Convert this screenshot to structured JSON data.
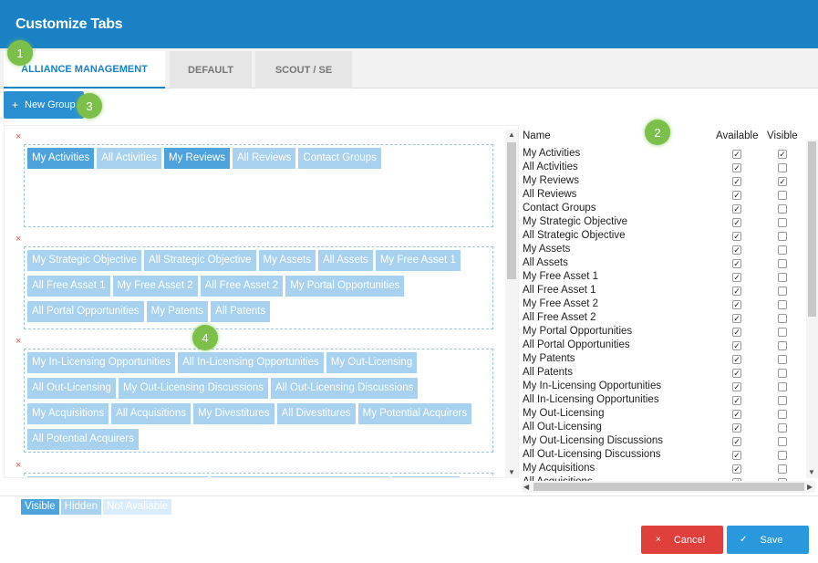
{
  "dialog": {
    "title": "Customize Tabs"
  },
  "tabs": [
    {
      "label": "ALLIANCE MANAGEMENT",
      "active": true
    },
    {
      "label": "DEFAULT",
      "active": false
    },
    {
      "label": "SCOUT / SE",
      "active": false
    }
  ],
  "badges": [
    "1",
    "2",
    "3",
    "4"
  ],
  "toolbar": {
    "new_group_label": "New Group",
    "new_group_icon": "+"
  },
  "groups": [
    {
      "remove_icon": "×",
      "chips": [
        {
          "label": "My Activities",
          "state": "visible"
        },
        {
          "label": "All Activities",
          "state": "hidden"
        },
        {
          "label": "My Reviews",
          "state": "visible"
        },
        {
          "label": "All Reviews",
          "state": "hidden"
        },
        {
          "label": "Contact Groups",
          "state": "hidden"
        }
      ]
    },
    {
      "remove_icon": "×",
      "chips": [
        {
          "label": "My Strategic Objective",
          "state": "hidden"
        },
        {
          "label": "All Strategic Objective",
          "state": "hidden"
        },
        {
          "label": "My Assets",
          "state": "hidden"
        },
        {
          "label": "All Assets",
          "state": "hidden"
        },
        {
          "label": "My Free Asset 1",
          "state": "hidden"
        },
        {
          "label": "All Free Asset 1",
          "state": "hidden"
        },
        {
          "label": "My Free Asset 2",
          "state": "hidden"
        },
        {
          "label": "All Free Asset 2",
          "state": "hidden"
        },
        {
          "label": "My Portal Opportunities",
          "state": "hidden"
        },
        {
          "label": "All Portal Opportunities",
          "state": "hidden"
        },
        {
          "label": "My Patents",
          "state": "hidden"
        },
        {
          "label": "All Patents",
          "state": "hidden"
        }
      ]
    },
    {
      "remove_icon": "×",
      "chips": [
        {
          "label": "My In-Licensing Opportunities",
          "state": "hidden"
        },
        {
          "label": "All In-Licensing Opportunities",
          "state": "hidden"
        },
        {
          "label": "My Out-Licensing",
          "state": "hidden"
        },
        {
          "label": "All Out-Licensing",
          "state": "hidden"
        },
        {
          "label": "My Out-Licensing Discussions",
          "state": "hidden"
        },
        {
          "label": "All Out-Licensing Discussions",
          "state": "hidden"
        },
        {
          "label": "My Acquisitions",
          "state": "hidden"
        },
        {
          "label": "All Acquisitions",
          "state": "hidden"
        },
        {
          "label": "My Divestitures",
          "state": "hidden"
        },
        {
          "label": "All Divestitures",
          "state": "hidden"
        },
        {
          "label": "My Potential Acquirers",
          "state": "hidden"
        },
        {
          "label": "All Potential Acquirers",
          "state": "hidden"
        }
      ]
    },
    {
      "remove_icon": "×",
      "chips": [
        {
          "label": "",
          "state": "hidden"
        },
        {
          "label": "",
          "state": "hidden"
        },
        {
          "label": "",
          "state": "hidden"
        }
      ]
    }
  ],
  "table": {
    "headers": {
      "name": "Name",
      "available": "Available",
      "visible": "Visible"
    },
    "rows": [
      {
        "name": "My Activities",
        "available": true,
        "visible": true
      },
      {
        "name": "All Activities",
        "available": true,
        "visible": false
      },
      {
        "name": "My Reviews",
        "available": true,
        "visible": true
      },
      {
        "name": "All Reviews",
        "available": true,
        "visible": false
      },
      {
        "name": "Contact Groups",
        "available": true,
        "visible": false
      },
      {
        "name": "My Strategic Objective",
        "available": true,
        "visible": false
      },
      {
        "name": "All Strategic Objective",
        "available": true,
        "visible": false
      },
      {
        "name": "My Assets",
        "available": true,
        "visible": false
      },
      {
        "name": "All Assets",
        "available": true,
        "visible": false
      },
      {
        "name": "My Free Asset 1",
        "available": true,
        "visible": false
      },
      {
        "name": "All Free Asset 1",
        "available": true,
        "visible": false
      },
      {
        "name": "My Free Asset 2",
        "available": true,
        "visible": false
      },
      {
        "name": "All Free Asset 2",
        "available": true,
        "visible": false
      },
      {
        "name": "My Portal Opportunities",
        "available": true,
        "visible": false
      },
      {
        "name": "All Portal Opportunities",
        "available": true,
        "visible": false
      },
      {
        "name": "My Patents",
        "available": true,
        "visible": false
      },
      {
        "name": "All Patents",
        "available": true,
        "visible": false
      },
      {
        "name": "My In-Licensing Opportunities",
        "available": true,
        "visible": false
      },
      {
        "name": "All In-Licensing Opportunities",
        "available": true,
        "visible": false
      },
      {
        "name": "My Out-Licensing",
        "available": true,
        "visible": false
      },
      {
        "name": "All Out-Licensing",
        "available": true,
        "visible": false
      },
      {
        "name": "My Out-Licensing Discussions",
        "available": true,
        "visible": false
      },
      {
        "name": "All Out-Licensing Discussions",
        "available": true,
        "visible": false
      },
      {
        "name": "My Acquisitions",
        "available": true,
        "visible": false
      },
      {
        "name": "All Acquisitions",
        "available": true,
        "visible": false
      }
    ]
  },
  "legend": {
    "visible": "Visible",
    "hidden": "Hidden",
    "not_available": "Not Avaliable"
  },
  "footer": {
    "cancel_label": "Cancel",
    "cancel_icon": "×",
    "save_label": "Save",
    "save_icon": "✓"
  },
  "colors": {
    "header": "#1a82c4",
    "chip_visible": "#4ea3dd",
    "chip_hidden": "#a7d1ef",
    "badge": "#7cc04b",
    "cancel": "#e0403c",
    "save": "#2a98dd"
  },
  "icons": {
    "scroll_up": "▲",
    "scroll_down": "▼",
    "scroll_left": "◀",
    "scroll_right": "▶",
    "check": "✓"
  }
}
